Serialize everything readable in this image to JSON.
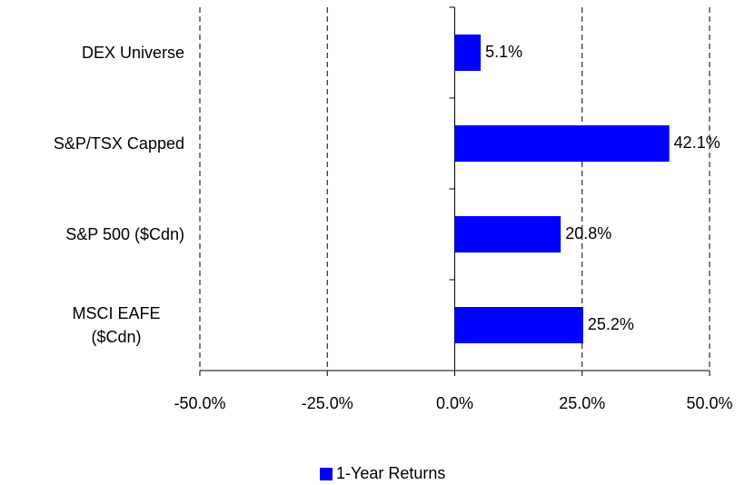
{
  "chart_data": {
    "type": "bar",
    "orientation": "horizontal",
    "categories": [
      "DEX Universe",
      "S&P/TSX Capped",
      "S&P 500 ($Cdn)",
      "MSCI EAFE ($Cdn)"
    ],
    "series": [
      {
        "name": "1-Year Returns",
        "color": "#0000ff",
        "values": [
          5.1,
          42.1,
          20.8,
          25.2
        ],
        "value_labels": [
          "5.1%",
          "42.1%",
          "20.8%",
          "25.2%"
        ]
      }
    ],
    "xlim": [
      -50,
      50
    ],
    "xticks": [
      {
        "value": -50,
        "label": "-50.0%"
      },
      {
        "value": -25,
        "label": "-25.0%"
      },
      {
        "value": 0,
        "label": "0.0%"
      },
      {
        "value": 25,
        "label": "25.0%"
      },
      {
        "value": 50,
        "label": "50.0%"
      }
    ],
    "grid": true,
    "legend": "bottom"
  }
}
